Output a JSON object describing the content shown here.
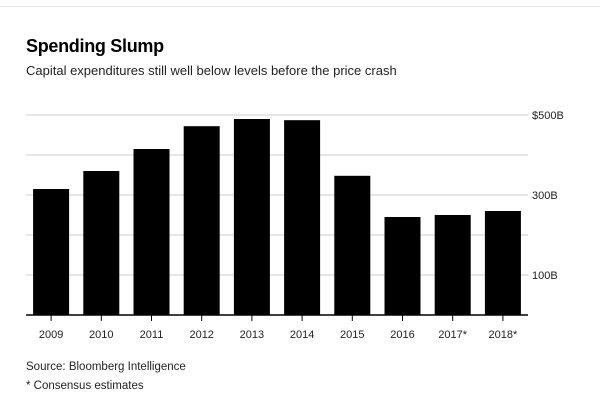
{
  "title": "Spending Slump",
  "subtitle": "Capital expenditures still well below levels before the price crash",
  "source": "Source: Bloomberg Intelligence",
  "note": "* Consensus estimates",
  "colors": {
    "bar": "#000000",
    "grid": "#cccccc",
    "axis": "#000000"
  },
  "chart_data": {
    "type": "bar",
    "title": "Spending Slump",
    "subtitle": "Capital expenditures still well below levels before the price crash",
    "categories": [
      "2009",
      "2010",
      "2011",
      "2012",
      "2013",
      "2014",
      "2015",
      "2016",
      "2017*",
      "2018*"
    ],
    "values": [
      315,
      360,
      415,
      472,
      490,
      487,
      348,
      245,
      250,
      260
    ],
    "unit": "B",
    "ylim": [
      0,
      500
    ],
    "y_ticks": [
      100,
      200,
      300,
      400,
      500
    ],
    "y_tick_labels": [
      "100B",
      "",
      "300B",
      "",
      "$500B"
    ],
    "grid": true,
    "yaxis_position": "right"
  }
}
